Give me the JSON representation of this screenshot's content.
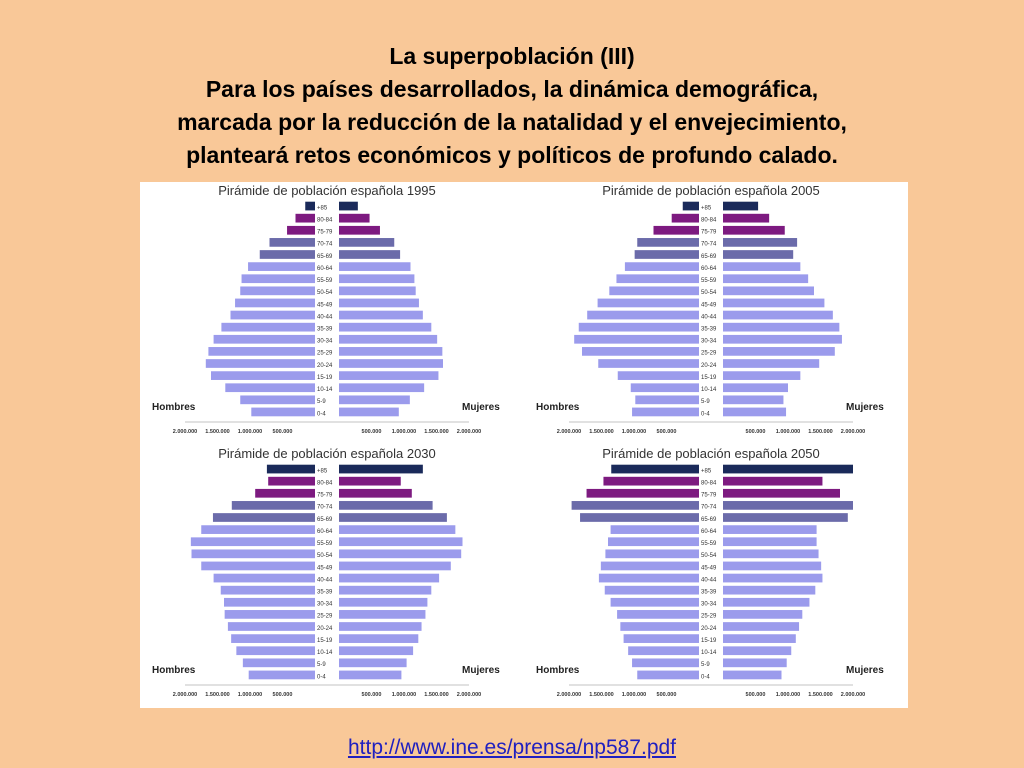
{
  "slide": {
    "title_lines": [
      "La superpoblación (III)",
      "Para los países desarrollados, la dinámica demográfica,",
      "marcada por la reducción de la natalidad y el envejecimiento,",
      "planteará retos económicos y políticos de profundo calado."
    ],
    "source_url": "http://www.ine.es/prensa/np587.pdf"
  },
  "colors": {
    "background": "#f9c898",
    "bar_young": "#9b9bec",
    "bar_6574": "#6b6baa",
    "bar_7584": "#7d1a80",
    "bar_85plus": "#1a2a5a"
  },
  "chart_data": [
    {
      "type": "bar",
      "title": "Pirámide de población española 1995",
      "categories": [
        "0-4",
        "5-9",
        "10-14",
        "15-19",
        "20-24",
        "25-29",
        "30-34",
        "35-39",
        "40-44",
        "45-49",
        "50-54",
        "55-59",
        "60-64",
        "65-69",
        "70-74",
        "75-79",
        "80-84",
        "+85"
      ],
      "series": [
        {
          "name": "Hombres",
          "values": [
            980000,
            1150000,
            1380000,
            1600000,
            1680000,
            1640000,
            1560000,
            1440000,
            1300000,
            1230000,
            1150000,
            1130000,
            1030000,
            850000,
            700000,
            430000,
            300000,
            150000
          ]
        },
        {
          "name": "Mujeres",
          "values": [
            920000,
            1090000,
            1310000,
            1530000,
            1600000,
            1590000,
            1510000,
            1420000,
            1290000,
            1230000,
            1180000,
            1160000,
            1100000,
            940000,
            850000,
            630000,
            470000,
            290000
          ]
        }
      ],
      "ticks": [
        "2.000.000",
        "1.500.000",
        "1.000.000",
        "500.000",
        "500.000",
        "1.000.000",
        "1.500.000",
        "2.000.000"
      ],
      "xlim": [
        -2000000,
        2000000
      ]
    },
    {
      "type": "bar",
      "title": "Pirámide de población española 2005",
      "categories": [
        "0-4",
        "5-9",
        "10-14",
        "15-19",
        "20-24",
        "25-29",
        "30-34",
        "35-39",
        "40-44",
        "45-49",
        "50-54",
        "55-59",
        "60-64",
        "65-69",
        "70-74",
        "75-79",
        "80-84",
        "+85"
      ],
      "series": [
        {
          "name": "Hombres",
          "values": [
            1030000,
            980000,
            1050000,
            1250000,
            1550000,
            1800000,
            1920000,
            1850000,
            1720000,
            1560000,
            1380000,
            1270000,
            1140000,
            990000,
            950000,
            700000,
            420000,
            250000
          ]
        },
        {
          "name": "Mujeres",
          "values": [
            970000,
            930000,
            1000000,
            1190000,
            1480000,
            1720000,
            1830000,
            1790000,
            1690000,
            1560000,
            1400000,
            1310000,
            1190000,
            1080000,
            1140000,
            950000,
            710000,
            540000
          ]
        }
      ],
      "ticks": [
        "2.000.000",
        "1.500.000",
        "1.000.000",
        "500.000",
        "500.000",
        "1.000.000",
        "1.500.000",
        "2.000.000"
      ],
      "xlim": [
        -2000000,
        2000000
      ]
    },
    {
      "type": "bar",
      "title": "Pirámide de población española 2030",
      "categories": [
        "0-4",
        "5-9",
        "10-14",
        "15-19",
        "20-24",
        "25-29",
        "30-34",
        "35-39",
        "40-44",
        "45-49",
        "50-54",
        "55-59",
        "60-64",
        "65-69",
        "70-74",
        "75-79",
        "80-84",
        "+85"
      ],
      "series": [
        {
          "name": "Hombres",
          "values": [
            1020000,
            1110000,
            1210000,
            1290000,
            1340000,
            1390000,
            1400000,
            1450000,
            1560000,
            1750000,
            1900000,
            1910000,
            1750000,
            1570000,
            1280000,
            920000,
            720000,
            740000
          ]
        },
        {
          "name": "Mujeres",
          "values": [
            960000,
            1040000,
            1140000,
            1220000,
            1270000,
            1330000,
            1360000,
            1420000,
            1540000,
            1720000,
            1880000,
            1900000,
            1790000,
            1660000,
            1440000,
            1120000,
            950000,
            1290000
          ]
        }
      ],
      "ticks": [
        "2.000.000",
        "1.500.000",
        "1.000.000",
        "500.000",
        "500.000",
        "1.000.000",
        "1.500.000",
        "2.000.000"
      ],
      "xlim": [
        -2000000,
        2000000
      ]
    },
    {
      "type": "bar",
      "title": "Pirámide de población española 2050",
      "categories": [
        "0-4",
        "5-9",
        "10-14",
        "15-19",
        "20-24",
        "25-29",
        "30-34",
        "35-39",
        "40-44",
        "45-49",
        "50-54",
        "55-59",
        "60-64",
        "65-69",
        "70-74",
        "75-79",
        "80-84",
        "+85"
      ],
      "series": [
        {
          "name": "Hombres",
          "values": [
            950000,
            1030000,
            1090000,
            1160000,
            1210000,
            1260000,
            1360000,
            1450000,
            1540000,
            1510000,
            1440000,
            1400000,
            1360000,
            1830000,
            1960000,
            1730000,
            1470000,
            1350000
          ]
        },
        {
          "name": "Mujeres",
          "values": [
            900000,
            980000,
            1050000,
            1120000,
            1170000,
            1220000,
            1330000,
            1420000,
            1530000,
            1510000,
            1470000,
            1440000,
            1440000,
            1920000,
            2000000,
            1800000,
            1530000,
            2000000
          ]
        }
      ],
      "ticks": [
        "2.000.000",
        "1.500.000",
        "1.000.000",
        "500.000",
        "500.000",
        "1.000.000",
        "1.500.000",
        "2.000.000"
      ],
      "xlim": [
        -2000000,
        2000000
      ]
    }
  ]
}
